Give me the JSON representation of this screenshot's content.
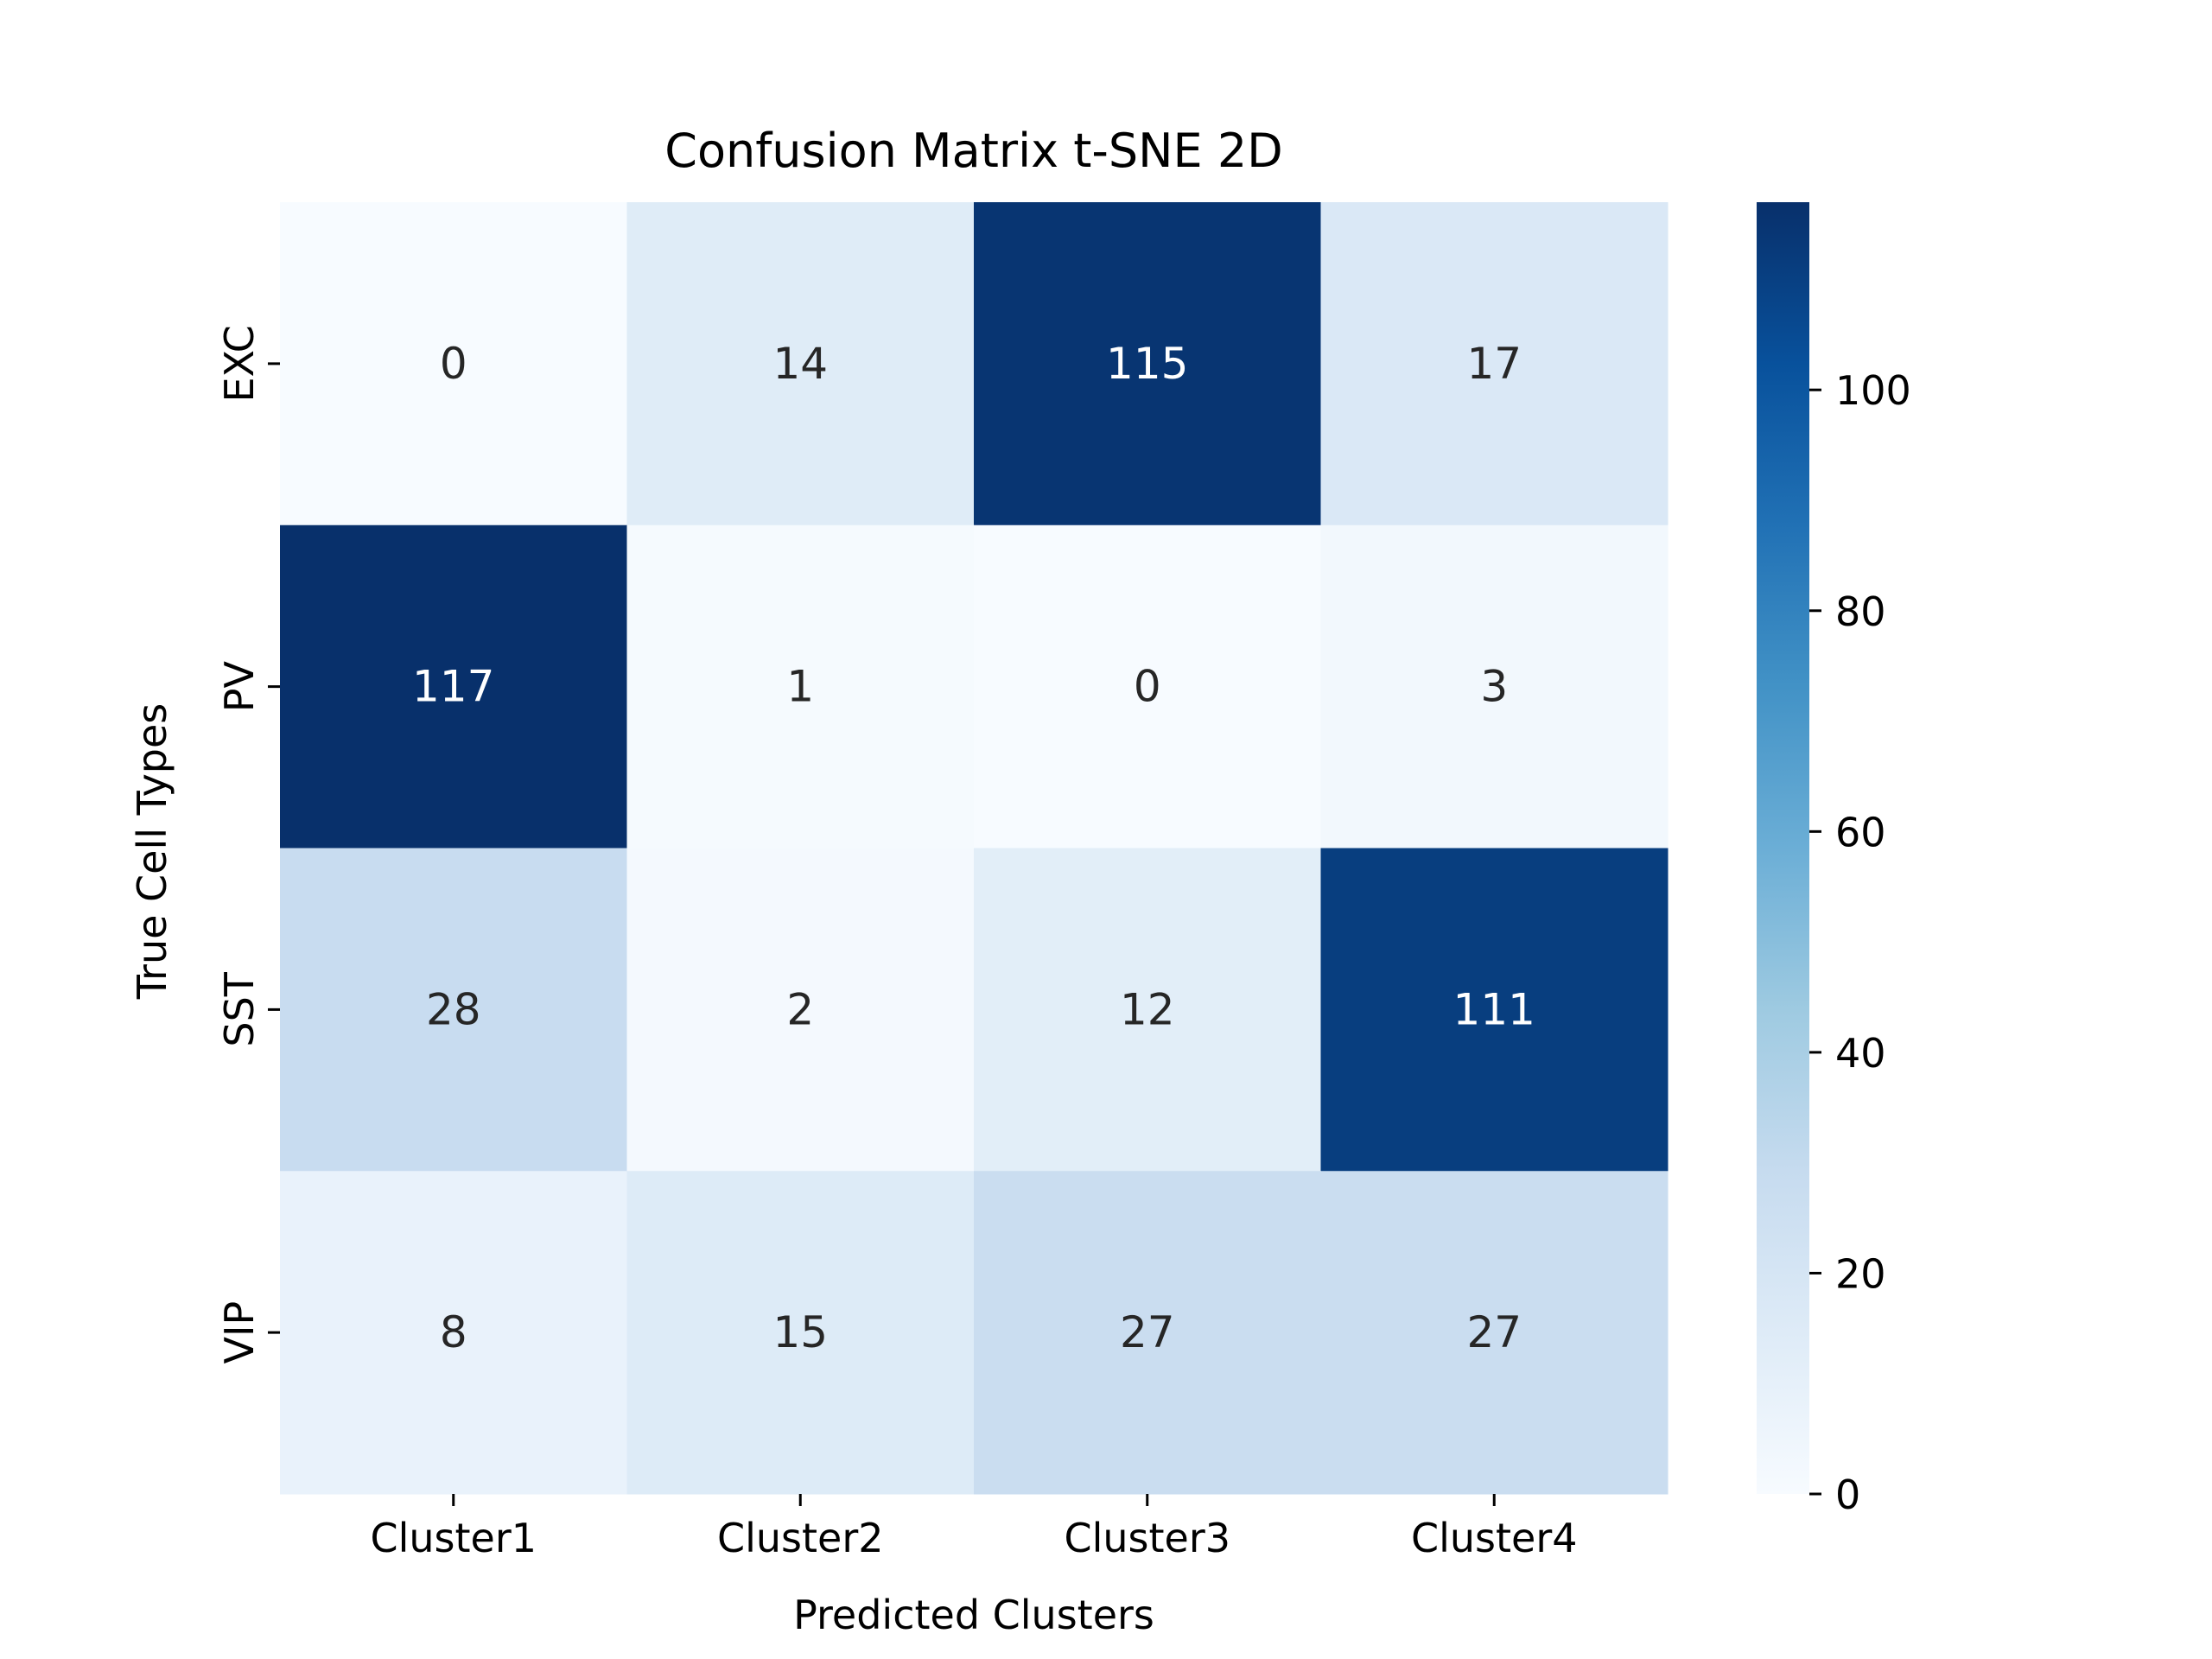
{
  "chart_data": {
    "type": "heatmap",
    "title": "Confusion Matrix t-SNE 2D",
    "xlabel": "Predicted Clusters",
    "ylabel": "True Cell Types",
    "x_categories": [
      "Cluster1",
      "Cluster2",
      "Cluster3",
      "Cluster4"
    ],
    "y_categories": [
      "EXC",
      "PV",
      "SST",
      "VIP"
    ],
    "values": [
      [
        0,
        14,
        115,
        17
      ],
      [
        117,
        1,
        0,
        3
      ],
      [
        28,
        2,
        12,
        111
      ],
      [
        8,
        15,
        27,
        27
      ]
    ],
    "colorbar": {
      "range": [
        0,
        117
      ],
      "ticks": [
        0,
        20,
        40,
        60,
        80,
        100
      ],
      "colormap": "Blues"
    },
    "annotation_color_dark": "#262626",
    "annotation_color_light": "#ffffff"
  }
}
